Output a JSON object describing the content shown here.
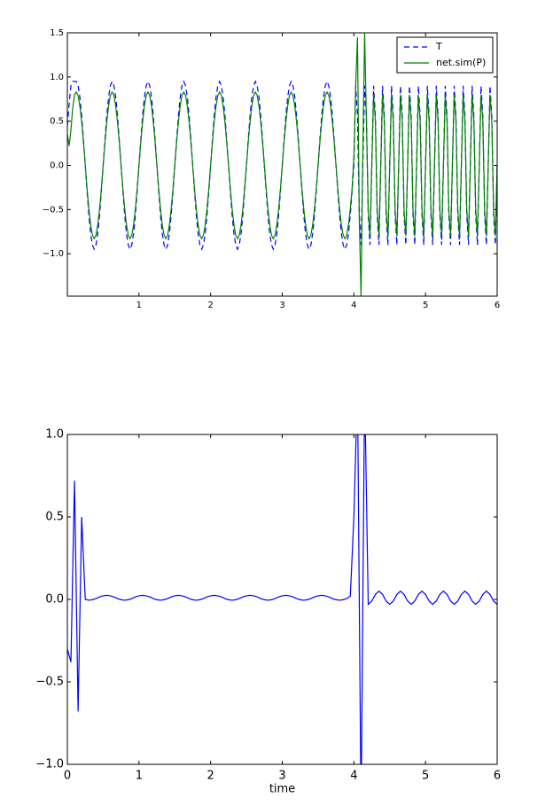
{
  "chart_data": [
    {
      "type": "line",
      "legend": "upper right",
      "xlim": [
        0,
        6
      ],
      "ylim": [
        -1.48,
        1.5
      ],
      "xticks": [
        1,
        2,
        3,
        4,
        5,
        6
      ],
      "yticks": [
        {
          "value": -1,
          "label": "−1.0"
        },
        {
          "value": -0.5,
          "label": "−0.5"
        },
        {
          "value": 0,
          "label": "0.0"
        },
        0.5,
        {
          "value": 1,
          "label": "1.0"
        },
        1.5
      ],
      "x": [
        0,
        0.025,
        0.05,
        0.075,
        0.1,
        0.125,
        0.15,
        0.175,
        0.2,
        0.225,
        0.25,
        0.275,
        0.3,
        0.325,
        0.35,
        0.375,
        0.4,
        0.425,
        0.45,
        0.475,
        0.5,
        0.525,
        0.55,
        0.575,
        0.6,
        0.625,
        0.65,
        0.675,
        0.7,
        0.725,
        0.75,
        0.775,
        0.8,
        0.825,
        0.85,
        0.875,
        0.9,
        0.925,
        0.95,
        0.975,
        1,
        1.025,
        1.05,
        1.075,
        1.1,
        1.125,
        1.15,
        1.175,
        1.2,
        1.225,
        1.25,
        1.275,
        1.3,
        1.325,
        1.35,
        1.375,
        1.4,
        1.425,
        1.45,
        1.475,
        1.5,
        1.525,
        1.55,
        1.575,
        1.6,
        1.625,
        1.65,
        1.675,
        1.7,
        1.725,
        1.75,
        1.775,
        1.8,
        1.825,
        1.85,
        1.875,
        1.9,
        1.925,
        1.95,
        1.975,
        2,
        2.025,
        2.05,
        2.075,
        2.1,
        2.125,
        2.15,
        2.175,
        2.2,
        2.225,
        2.25,
        2.275,
        2.3,
        2.325,
        2.35,
        2.375,
        2.4,
        2.425,
        2.45,
        2.475,
        2.5,
        2.525,
        2.55,
        2.575,
        2.6,
        2.625,
        2.65,
        2.675,
        2.7,
        2.725,
        2.75,
        2.775,
        2.8,
        2.825,
        2.85,
        2.875,
        2.9,
        2.925,
        2.95,
        2.975,
        3,
        3.025,
        3.05,
        3.075,
        3.1,
        3.125,
        3.15,
        3.175,
        3.2,
        3.225,
        3.25,
        3.275,
        3.3,
        3.325,
        3.35,
        3.375,
        3.4,
        3.425,
        3.45,
        3.475,
        3.5,
        3.525,
        3.55,
        3.575,
        3.6,
        3.625,
        3.65,
        3.675,
        3.7,
        3.725,
        3.75,
        3.775,
        3.8,
        3.825,
        3.85,
        3.875,
        3.9,
        3.925,
        3.95,
        3.975,
        4,
        4.025,
        4.05,
        4.075,
        4.1,
        4.125,
        4.15,
        4.175,
        4.2,
        4.225,
        4.25,
        4.275,
        4.3,
        4.325,
        4.35,
        4.375,
        4.4,
        4.425,
        4.45,
        4.475,
        4.5,
        4.525,
        4.55,
        4.575,
        4.6,
        4.625,
        4.65,
        4.675,
        4.7,
        4.725,
        4.75,
        4.775,
        4.8,
        4.825,
        4.85,
        4.875,
        4.9,
        4.925,
        4.95,
        4.975,
        5,
        5.025,
        5.05,
        5.075,
        5.1,
        5.125,
        5.15,
        5.175,
        5.2,
        5.225,
        5.25,
        5.275,
        5.3,
        5.325,
        5.35,
        5.375,
        5.4,
        5.425,
        5.45,
        5.475,
        5.5,
        5.525,
        5.55,
        5.575,
        5.6,
        5.625,
        5.65,
        5.675,
        5.7,
        5.725,
        5.75,
        5.775,
        5.8,
        5.825,
        5.85,
        5.875,
        5.9,
        5.925,
        5.95,
        5.975,
        6
      ],
      "series": [
        {
          "name": "T",
          "color": "#0000ff",
          "linestyle": "dashed",
          "values": [
            0.45,
            0.7,
            0.9,
            0.95,
            0.95,
            0.95,
            0.9,
            0.77,
            0.56,
            0.29,
            0,
            -0.29,
            -0.56,
            -0.77,
            -0.9,
            -0.95,
            -0.9,
            -0.77,
            -0.56,
            -0.29,
            0,
            0.29,
            0.56,
            0.77,
            0.9,
            0.95,
            0.9,
            0.77,
            0.56,
            0.29,
            0,
            -0.29,
            -0.56,
            -0.77,
            -0.9,
            -0.95,
            -0.9,
            -0.77,
            -0.56,
            -0.29,
            0,
            0.29,
            0.56,
            0.77,
            0.9,
            0.95,
            0.9,
            0.77,
            0.56,
            0.29,
            0,
            -0.29,
            -0.56,
            -0.77,
            -0.9,
            -0.95,
            -0.9,
            -0.77,
            -0.56,
            -0.29,
            0,
            0.29,
            0.56,
            0.77,
            0.9,
            0.95,
            0.9,
            0.77,
            0.56,
            0.29,
            0,
            -0.29,
            -0.56,
            -0.77,
            -0.9,
            -0.95,
            -0.9,
            -0.77,
            -0.56,
            -0.29,
            0,
            0.29,
            0.56,
            0.77,
            0.9,
            0.95,
            0.9,
            0.77,
            0.56,
            0.29,
            0,
            -0.29,
            -0.56,
            -0.77,
            -0.9,
            -0.95,
            -0.9,
            -0.77,
            -0.56,
            -0.29,
            0,
            0.29,
            0.56,
            0.77,
            0.9,
            0.95,
            0.9,
            0.77,
            0.56,
            0.29,
            0,
            -0.29,
            -0.56,
            -0.77,
            -0.9,
            -0.95,
            -0.9,
            -0.77,
            -0.56,
            -0.29,
            0,
            0.29,
            0.56,
            0.77,
            0.9,
            0.95,
            0.9,
            0.77,
            0.56,
            0.29,
            0,
            -0.29,
            -0.56,
            -0.77,
            -0.9,
            -0.95,
            -0.9,
            -0.77,
            -0.56,
            -0.29,
            0,
            0.29,
            0.56,
            0.77,
            0.9,
            0.95,
            0.9,
            0.77,
            0.56,
            0.29,
            0,
            -0.29,
            -0.56,
            -0.77,
            -0.9,
            -0.95,
            -0.9,
            -0.77,
            -0.56,
            -0.29,
            0,
            0.9,
            0.56,
            -0.56,
            -0.9,
            0,
            0.9,
            0.56,
            -0.56,
            -0.9,
            0,
            0.9,
            0.56,
            -0.56,
            -0.9,
            0,
            0.9,
            0.56,
            -0.56,
            -0.9,
            0,
            0.9,
            0.56,
            -0.56,
            -0.9,
            0,
            0.9,
            0.56,
            -0.56,
            -0.9,
            0,
            0.9,
            0.56,
            -0.56,
            -0.9,
            0,
            0.9,
            0.56,
            -0.56,
            -0.9,
            0,
            0.9,
            0.56,
            -0.56,
            -0.9,
            0,
            0.9,
            0.56,
            -0.56,
            -0.9,
            0,
            0.9,
            0.56,
            -0.56,
            -0.9,
            0,
            0.9,
            0.56,
            -0.56,
            -0.9,
            0,
            0.9,
            0.56,
            -0.56,
            -0.9,
            0,
            0.9,
            0.56,
            -0.56,
            -0.9,
            0,
            0.9,
            0.56,
            -0.56,
            -0.9,
            0,
            0.9,
            0.56,
            -0.56,
            -0.9,
            0
          ]
        },
        {
          "name": "net.sim(P)",
          "color": "#008000",
          "linestyle": "solid",
          "values": [
            0.35,
            0.22,
            0.4,
            0.65,
            0.8,
            0.83,
            0.79,
            0.67,
            0.49,
            0.26,
            0,
            -0.26,
            -0.49,
            -0.67,
            -0.79,
            -0.83,
            -0.79,
            -0.67,
            -0.49,
            -0.26,
            0,
            0.26,
            0.49,
            0.67,
            0.79,
            0.83,
            0.79,
            0.67,
            0.49,
            0.26,
            0,
            -0.26,
            -0.49,
            -0.67,
            -0.79,
            -0.83,
            -0.79,
            -0.67,
            -0.49,
            -0.26,
            0,
            0.26,
            0.49,
            0.67,
            0.79,
            0.83,
            0.79,
            0.67,
            0.49,
            0.26,
            0,
            -0.26,
            -0.49,
            -0.67,
            -0.79,
            -0.83,
            -0.79,
            -0.67,
            -0.49,
            -0.26,
            0,
            0.26,
            0.49,
            0.67,
            0.79,
            0.83,
            0.79,
            0.67,
            0.49,
            0.26,
            0,
            -0.26,
            -0.49,
            -0.67,
            -0.79,
            -0.83,
            -0.79,
            -0.67,
            -0.49,
            -0.26,
            0,
            0.26,
            0.49,
            0.67,
            0.79,
            0.83,
            0.79,
            0.67,
            0.49,
            0.26,
            0,
            -0.26,
            -0.49,
            -0.67,
            -0.79,
            -0.83,
            -0.79,
            -0.67,
            -0.49,
            -0.26,
            0,
            0.26,
            0.49,
            0.67,
            0.79,
            0.83,
            0.79,
            0.67,
            0.49,
            0.26,
            0,
            -0.26,
            -0.49,
            -0.67,
            -0.79,
            -0.83,
            -0.79,
            -0.67,
            -0.49,
            -0.26,
            0,
            0.26,
            0.49,
            0.67,
            0.79,
            0.83,
            0.79,
            0.67,
            0.49,
            0.26,
            0,
            -0.26,
            -0.49,
            -0.67,
            -0.79,
            -0.83,
            -0.79,
            -0.67,
            -0.49,
            -0.26,
            0,
            0.26,
            0.49,
            0.67,
            0.79,
            0.83,
            0.79,
            0.67,
            0.49,
            0.26,
            0,
            -0.26,
            -0.49,
            -0.67,
            -0.79,
            -0.83,
            -0.79,
            -0.67,
            -0.49,
            -0.26,
            0.1,
            0.9,
            1.45,
            -0.6,
            -1.48,
            0.2,
            1.5,
            0.5,
            -0.5,
            -0.8,
            0,
            0.8,
            0.5,
            -0.5,
            -0.8,
            0,
            0.8,
            0.5,
            -0.5,
            -0.8,
            0,
            0.8,
            0.5,
            -0.5,
            -0.8,
            0,
            0.8,
            0.5,
            -0.5,
            -0.8,
            0,
            0.8,
            0.5,
            -0.5,
            -0.8,
            0,
            0.8,
            0.5,
            -0.5,
            -0.8,
            0,
            0.8,
            0.5,
            -0.5,
            -0.8,
            0,
            0.8,
            0.5,
            -0.5,
            -0.8,
            0,
            0.8,
            0.5,
            -0.5,
            -0.8,
            0,
            0.8,
            0.5,
            -0.5,
            -0.8,
            0,
            0.8,
            0.5,
            -0.5,
            -0.8,
            0,
            0.8,
            0.5,
            -0.5,
            -0.8,
            0,
            0.8,
            0.5,
            -0.5,
            -0.8,
            0,
            0.8,
            0.5,
            -0.5,
            -0.8,
            0
          ]
        }
      ]
    },
    {
      "type": "line",
      "xlabel": "time",
      "xlim": [
        0,
        6
      ],
      "ylim": [
        -1,
        1
      ],
      "xticks": [
        0,
        1,
        2,
        3,
        4,
        5,
        6
      ],
      "yticks": [
        {
          "value": -1,
          "label": "−1.0"
        },
        {
          "value": -0.5,
          "label": "−0.5"
        },
        {
          "value": 0,
          "label": "0.0"
        },
        0.5,
        {
          "value": 1,
          "label": "1.0"
        }
      ],
      "x": [
        0,
        0.05,
        0.1,
        0.15,
        0.2,
        0.25,
        0.3,
        0.35,
        0.4,
        0.45,
        0.5,
        0.55,
        0.6,
        0.65,
        0.7,
        0.75,
        0.8,
        0.85,
        0.9,
        0.95,
        1,
        1.05,
        1.1,
        1.15,
        1.2,
        1.25,
        1.3,
        1.35,
        1.4,
        1.45,
        1.5,
        1.55,
        1.6,
        1.65,
        1.7,
        1.75,
        1.8,
        1.85,
        1.9,
        1.95,
        2,
        2.05,
        2.1,
        2.15,
        2.2,
        2.25,
        2.3,
        2.35,
        2.4,
        2.45,
        2.5,
        2.55,
        2.6,
        2.65,
        2.7,
        2.75,
        2.8,
        2.85,
        2.9,
        2.95,
        3,
        3.05,
        3.1,
        3.15,
        3.2,
        3.25,
        3.3,
        3.35,
        3.4,
        3.45,
        3.5,
        3.55,
        3.6,
        3.65,
        3.7,
        3.75,
        3.8,
        3.85,
        3.9,
        3.95,
        4,
        4.05,
        4.1,
        4.15,
        4.2,
        4.25,
        4.3,
        4.35,
        4.4,
        4.45,
        4.5,
        4.55,
        4.6,
        4.65,
        4.7,
        4.75,
        4.8,
        4.85,
        4.9,
        4.95,
        5,
        5.05,
        5.1,
        5.15,
        5.2,
        5.25,
        5.3,
        5.35,
        5.4,
        5.45,
        5.5,
        5.55,
        5.6,
        5.65,
        5.7,
        5.75,
        5.8,
        5.85,
        5.9,
        5.95,
        6
      ],
      "series": [
        {
          "color": "#0000ff",
          "linestyle": "solid",
          "values": [
            -0.3,
            -0.38,
            0.72,
            -0.68,
            0.5,
            0,
            -0.005,
            -0.002,
            0.005,
            0.015,
            0.022,
            0.025,
            0.022,
            0.015,
            0.005,
            -0.002,
            -0.005,
            -0.002,
            0.005,
            0.015,
            0.022,
            0.025,
            0.022,
            0.015,
            0.005,
            -0.002,
            -0.005,
            -0.002,
            0.005,
            0.015,
            0.022,
            0.025,
            0.022,
            0.015,
            0.005,
            -0.002,
            -0.005,
            -0.002,
            0.005,
            0.015,
            0.022,
            0.025,
            0.022,
            0.015,
            0.005,
            -0.002,
            -0.005,
            -0.002,
            0.005,
            0.015,
            0.022,
            0.025,
            0.022,
            0.015,
            0.005,
            -0.002,
            -0.005,
            -0.002,
            0.005,
            0.015,
            0.022,
            0.025,
            0.022,
            0.015,
            0.005,
            -0.002,
            -0.005,
            -0.002,
            0.005,
            0.015,
            0.022,
            0.025,
            0.022,
            0.015,
            0.005,
            -0.002,
            -0.005,
            -0.002,
            0.005,
            0.02,
            0.5,
            1.3,
            -1.3,
            1.3,
            -0.03,
            -0.01,
            0.03,
            0.05,
            0.03,
            -0.01,
            -0.03,
            -0.01,
            0.03,
            0.05,
            0.03,
            -0.01,
            -0.03,
            -0.01,
            0.03,
            0.05,
            0.03,
            -0.01,
            -0.03,
            -0.01,
            0.03,
            0.05,
            0.03,
            -0.01,
            -0.03,
            -0.01,
            0.03,
            0.05,
            0.03,
            -0.01,
            -0.03,
            -0.01,
            0.03,
            0.05,
            0.03,
            -0.01,
            -0.03
          ]
        }
      ]
    }
  ]
}
